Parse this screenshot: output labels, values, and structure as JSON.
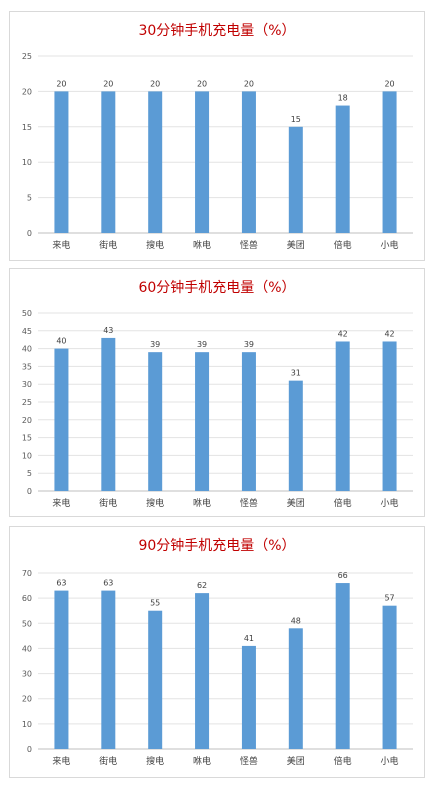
{
  "charts_color": "#5b9bd5",
  "chart_data": [
    {
      "type": "bar",
      "title": "30分钟手机充电量（%）",
      "categories": [
        "来电",
        "街电",
        "搜电",
        "咻电",
        "怪兽",
        "美团",
        "倍电",
        "小电"
      ],
      "values": [
        20,
        20,
        20,
        20,
        20,
        15,
        18,
        20
      ],
      "ylim": [
        0,
        25
      ],
      "yticks": [
        0,
        5,
        10,
        15,
        20,
        25
      ],
      "xlabel": "",
      "ylabel": "",
      "grid": true,
      "legend": "none",
      "color": "#5b9bd5"
    },
    {
      "type": "bar",
      "title": "60分钟手机充电量（%）",
      "categories": [
        "来电",
        "街电",
        "搜电",
        "咻电",
        "怪兽",
        "美团",
        "倍电",
        "小电"
      ],
      "values": [
        40,
        43,
        39,
        39,
        39,
        31,
        42,
        42
      ],
      "ylim": [
        0,
        50
      ],
      "yticks": [
        0,
        5,
        10,
        15,
        20,
        25,
        30,
        35,
        40,
        45,
        50
      ],
      "xlabel": "",
      "ylabel": "",
      "grid": true,
      "legend": "none",
      "color": "#5b9bd5"
    },
    {
      "type": "bar",
      "title": "90分钟手机充电量（%）",
      "categories": [
        "来电",
        "街电",
        "搜电",
        "咻电",
        "怪兽",
        "美团",
        "倍电",
        "小电"
      ],
      "values": [
        63,
        63,
        55,
        62,
        41,
        48,
        66,
        57
      ],
      "ylim": [
        0,
        70
      ],
      "yticks": [
        0,
        10,
        20,
        30,
        40,
        50,
        60,
        70
      ],
      "xlabel": "",
      "ylabel": "",
      "grid": true,
      "legend": "none",
      "color": "#5b9bd5"
    }
  ]
}
